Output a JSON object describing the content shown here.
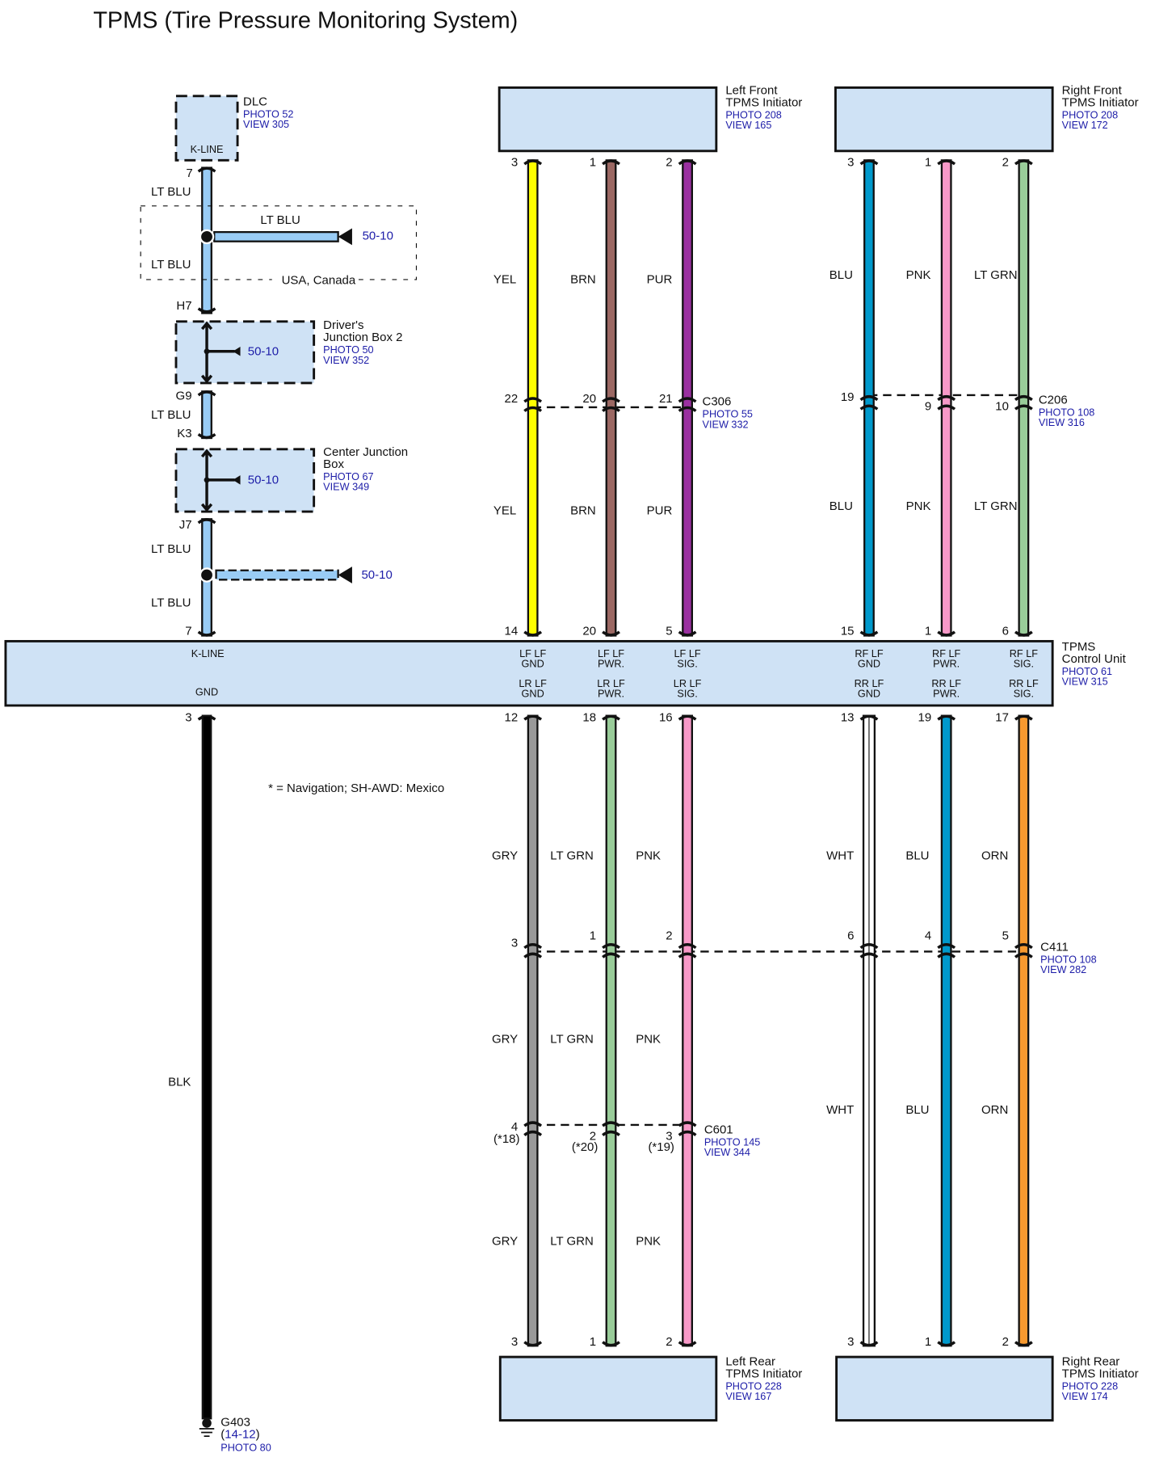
{
  "title": "TPMS (Tire Pressure Monitoring System)",
  "note": "* = Navigation; SH-AWD: Mexico",
  "dlc": {
    "name": "DLC",
    "photo": "PHOTO 52",
    "view": "VIEW 305",
    "terminal": "K-LINE",
    "pin": "7"
  },
  "kline": {
    "wire_color": "LT BLU",
    "wire_color_hex": "#99ccf5",
    "option_branch_color": "LT BLU",
    "option_branch_ref": "50-10",
    "below_splice_color": "LT BLU",
    "option_note": "USA, Canada",
    "jb2_in_pin": "H7",
    "jb2_out_pin": "G9",
    "between_color": "LT BLU",
    "cjb_in_pin": "K3",
    "cjb_out_pin": "J7",
    "after_cjb_color": "LT BLU",
    "splice2_ref": "50-10",
    "to_unit_color": "LT BLU",
    "unit_pin": "7"
  },
  "drivers_jb2": {
    "name_line1": "Driver's",
    "name_line2": "Junction Box 2",
    "photo": "PHOTO 50",
    "view": "VIEW 352",
    "ref": "50-10"
  },
  "center_jb": {
    "name_line1": "Center Junction",
    "name_line2": "Box",
    "photo": "PHOTO 67",
    "view": "VIEW 349",
    "ref": "50-10"
  },
  "unit": {
    "name_line1": "TPMS",
    "name_line2": "Control Unit",
    "photo": "PHOTO 61",
    "view": "VIEW 315",
    "kline_label": "K-LINE",
    "gnd_label": "GND",
    "gnd_pin": "3"
  },
  "ground": {
    "wire_color": "BLK",
    "name": "G403",
    "ref": "14-12",
    "photo": "PHOTO 80"
  },
  "front": [
    {
      "initiator": {
        "name_line1": "Left Front",
        "name_line2": "TPMS Initiator",
        "photo": "PHOTO 208",
        "view": "VIEW 165"
      },
      "connector": {
        "name": "C306",
        "photo": "PHOTO 55",
        "view": "VIEW 332"
      },
      "wires": [
        {
          "color_name": "YEL",
          "hex": "#ffff00",
          "pin_initiator": "3",
          "pin_connector": "22",
          "pin_unit": "14",
          "unit_l1": "LF LF",
          "unit_l2": "GND"
        },
        {
          "color_name": "BRN",
          "hex": "#9b6863",
          "pin_initiator": "1",
          "pin_connector": "20",
          "pin_unit": "20",
          "unit_l1": "LF LF",
          "unit_l2": "PWR."
        },
        {
          "color_name": "PUR",
          "hex": "#9a30a0",
          "pin_initiator": "2",
          "pin_connector": "21",
          "pin_unit": "5",
          "unit_l1": "LF LF",
          "unit_l2": "SIG."
        }
      ]
    },
    {
      "initiator": {
        "name_line1": "Right Front",
        "name_line2": "TPMS Initiator",
        "photo": "PHOTO 208",
        "view": "VIEW 172"
      },
      "connector": {
        "name": "C206",
        "photo": "PHOTO 108",
        "view": "VIEW 316"
      },
      "wires": [
        {
          "color_name": "BLU",
          "hex": "#0099cc",
          "pin_initiator": "3",
          "pin_connector": "19",
          "pin_unit": "15",
          "unit_l1": "RF LF",
          "unit_l2": "GND"
        },
        {
          "color_name": "PNK",
          "hex": "#f799c8",
          "pin_initiator": "1",
          "pin_connector": "9",
          "pin_unit": "1",
          "unit_l1": "RF LF",
          "unit_l2": "PWR."
        },
        {
          "color_name": "LT GRN",
          "hex": "#99cc99",
          "pin_initiator": "2",
          "pin_connector": "10",
          "pin_unit": "6",
          "unit_l1": "RF LF",
          "unit_l2": "SIG."
        }
      ]
    }
  ],
  "rear": [
    {
      "initiator": {
        "name_line1": "Left Rear",
        "name_line2": "TPMS Initiator",
        "photo": "PHOTO 228",
        "view": "VIEW 167"
      },
      "connector2": {
        "name": "C601",
        "photo": "PHOTO 145",
        "view": "VIEW 344"
      },
      "wires": [
        {
          "color_name": "GRY",
          "hex": "#999999",
          "pin_unit": "12",
          "pin_c411": "3",
          "pin_c601": "4",
          "pin_c601_alt": "(*18)",
          "pin_initiator": "3",
          "unit_l1": "LR LF",
          "unit_l2": "GND"
        },
        {
          "color_name": "LT GRN",
          "hex": "#99cc99",
          "pin_unit": "18",
          "pin_c411": "1",
          "pin_c601": "2",
          "pin_c601_alt": "(*20)",
          "pin_initiator": "1",
          "unit_l1": "LR LF",
          "unit_l2": "PWR."
        },
        {
          "color_name": "PNK",
          "hex": "#f799c8",
          "pin_unit": "16",
          "pin_c411": "2",
          "pin_c601": "3",
          "pin_c601_alt": "(*19)",
          "pin_initiator": "2",
          "unit_l1": "LR LF",
          "unit_l2": "SIG."
        }
      ]
    },
    {
      "initiator": {
        "name_line1": "Right Rear",
        "name_line2": "TPMS Initiator",
        "photo": "PHOTO 228",
        "view": "VIEW 174"
      },
      "wires": [
        {
          "color_name": "WHT",
          "hex": "#ffffff",
          "pin_unit": "13",
          "pin_c411": "6",
          "pin_initiator": "3",
          "unit_l1": "RR LF",
          "unit_l2": "GND"
        },
        {
          "color_name": "BLU",
          "hex": "#0099cc",
          "pin_unit": "19",
          "pin_c411": "4",
          "pin_initiator": "1",
          "unit_l1": "RR LF",
          "unit_l2": "PWR."
        },
        {
          "color_name": "ORN",
          "hex": "#f7992f",
          "pin_unit": "17",
          "pin_c411": "5",
          "pin_initiator": "2",
          "unit_l1": "RR LF",
          "unit_l2": "SIG."
        }
      ]
    }
  ],
  "c411": {
    "name": "C411",
    "photo": "PHOTO 108",
    "view": "VIEW 282"
  }
}
